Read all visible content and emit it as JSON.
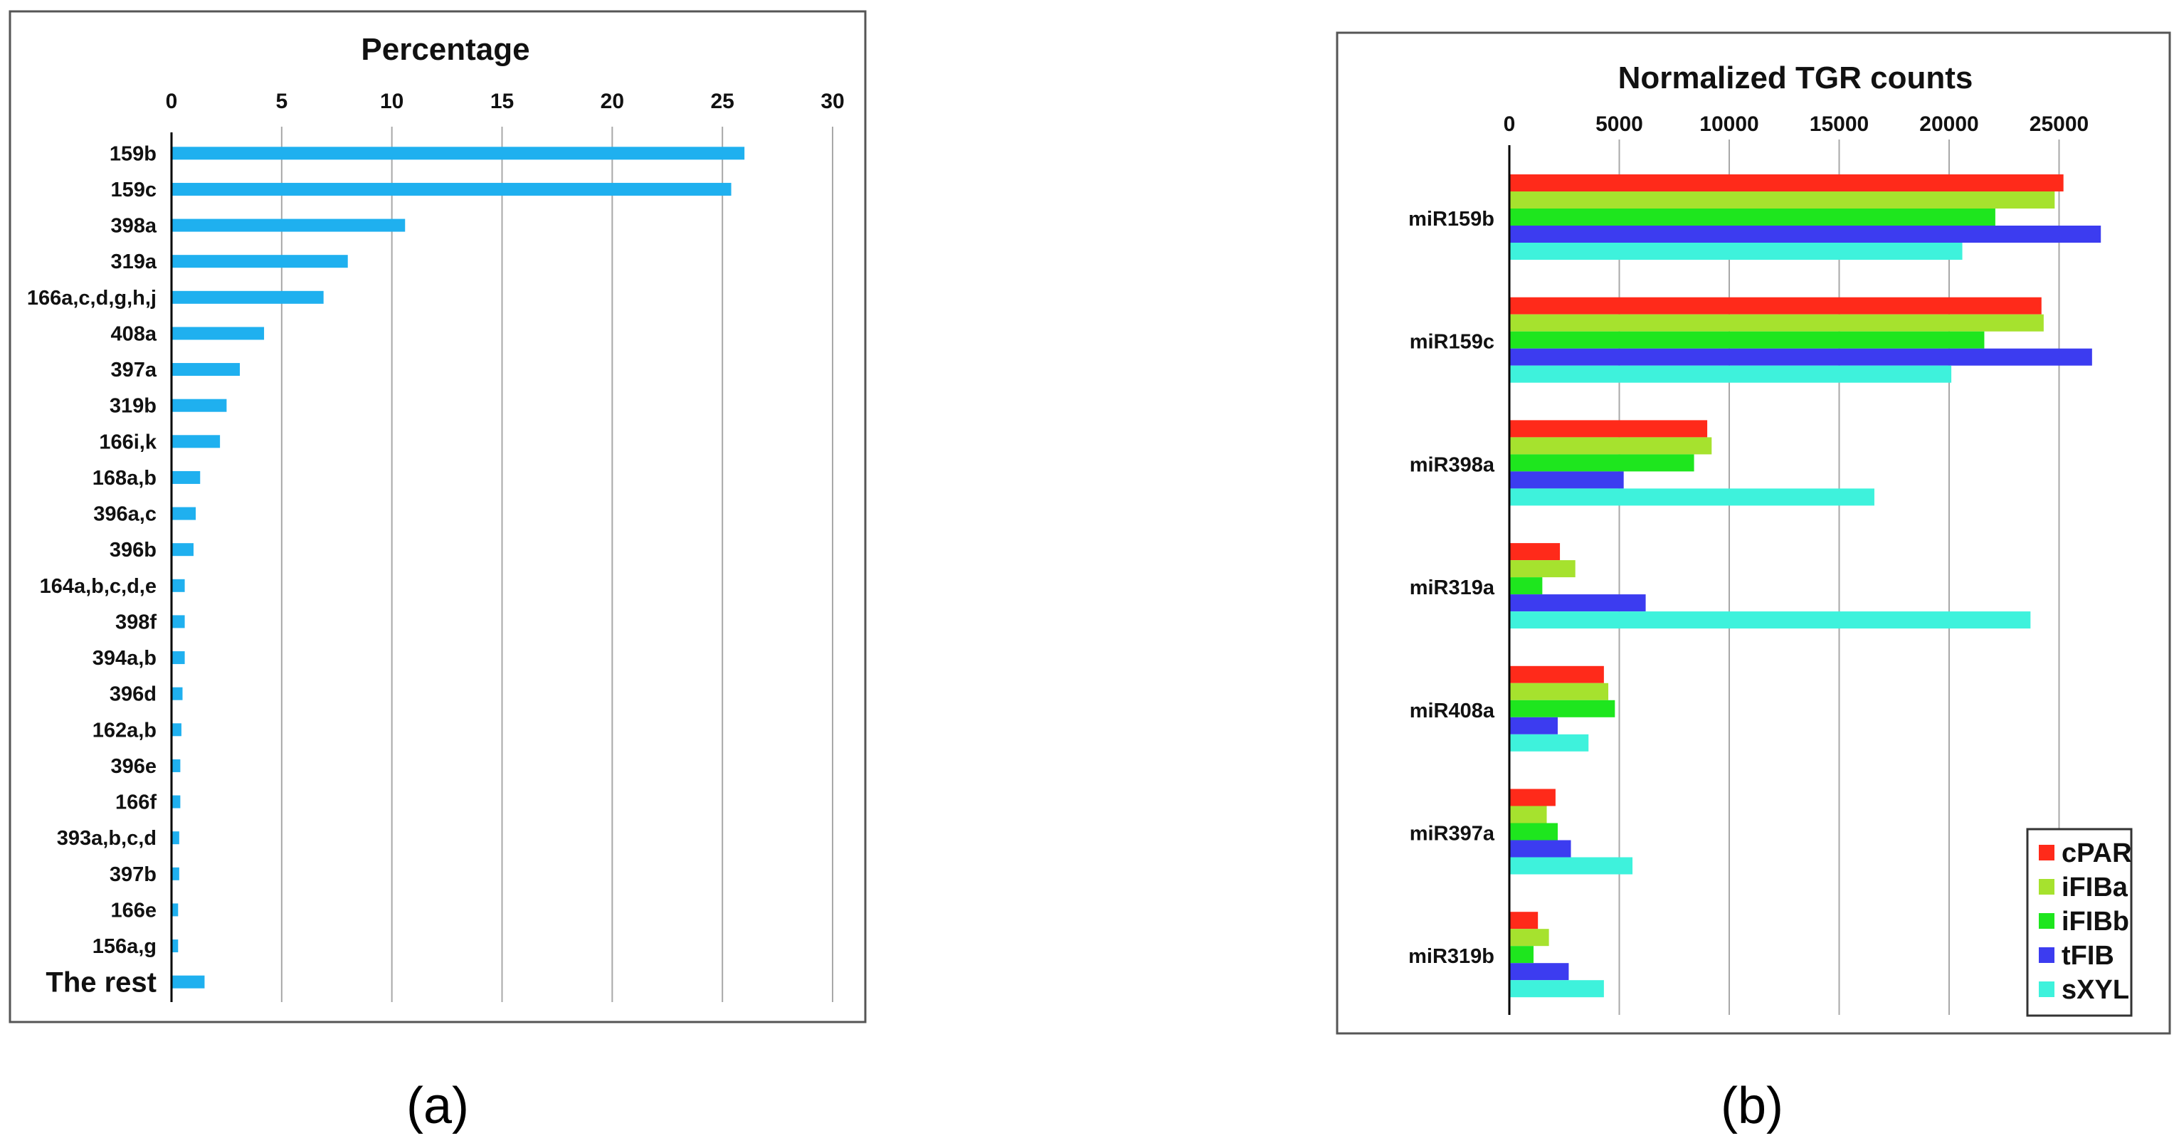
{
  "chart_data": [
    {
      "panel_label": "(a)",
      "type": "bar",
      "orientation": "horizontal",
      "title": "Percentage",
      "xlim": [
        0,
        30
      ],
      "xticks": [
        0,
        5,
        10,
        15,
        20,
        25,
        30
      ],
      "grid": true,
      "color": "#1fb0ef",
      "categories": [
        "159b",
        "159c",
        "398a",
        "319a",
        "166a,c,d,g,h,j",
        "408a",
        "397a",
        "319b",
        "166i,k",
        "168a,b",
        "396a,c",
        "396b",
        "164a,b,c,d,e",
        "398f",
        "394a,b",
        "396d",
        "162a,b",
        "396e",
        "166f",
        "393a,b,c,d",
        "397b",
        "166e",
        "156a,g",
        "The rest"
      ],
      "values": [
        26.0,
        25.4,
        10.6,
        8.0,
        6.9,
        4.2,
        3.1,
        2.5,
        2.2,
        1.3,
        1.1,
        1.0,
        0.6,
        0.6,
        0.6,
        0.5,
        0.45,
        0.4,
        0.4,
        0.35,
        0.35,
        0.3,
        0.3,
        1.5
      ]
    },
    {
      "panel_label": "(b)",
      "type": "bar",
      "orientation": "horizontal",
      "title": "Normalized TGR counts",
      "xlim": [
        0,
        28000
      ],
      "xticks": [
        0,
        5000,
        10000,
        15000,
        20000,
        25000
      ],
      "grid": true,
      "legend": "bottom-right",
      "categories": [
        "miR159b",
        "miR159c",
        "miR398a",
        "miR319a",
        "miR408a",
        "miR397a",
        "miR319b"
      ],
      "series": [
        {
          "name": "cPAR",
          "color": "#ff2a1a",
          "values": [
            25200,
            24200,
            9000,
            2300,
            4300,
            2100,
            1300
          ]
        },
        {
          "name": "iFIBa",
          "color": "#a6e22e",
          "values": [
            24800,
            24300,
            9200,
            3000,
            4500,
            1700,
            1800
          ]
        },
        {
          "name": "iFIBb",
          "color": "#1ee61e",
          "values": [
            22100,
            21600,
            8400,
            1500,
            4800,
            2200,
            1100
          ]
        },
        {
          "name": "tFIB",
          "color": "#3c3cf0",
          "values": [
            26900,
            26500,
            5200,
            6200,
            2200,
            2800,
            2700
          ]
        },
        {
          "name": "sXYL",
          "color": "#3ef2dc",
          "values": [
            20600,
            20100,
            16600,
            23700,
            3600,
            5600,
            4300
          ]
        }
      ]
    }
  ]
}
